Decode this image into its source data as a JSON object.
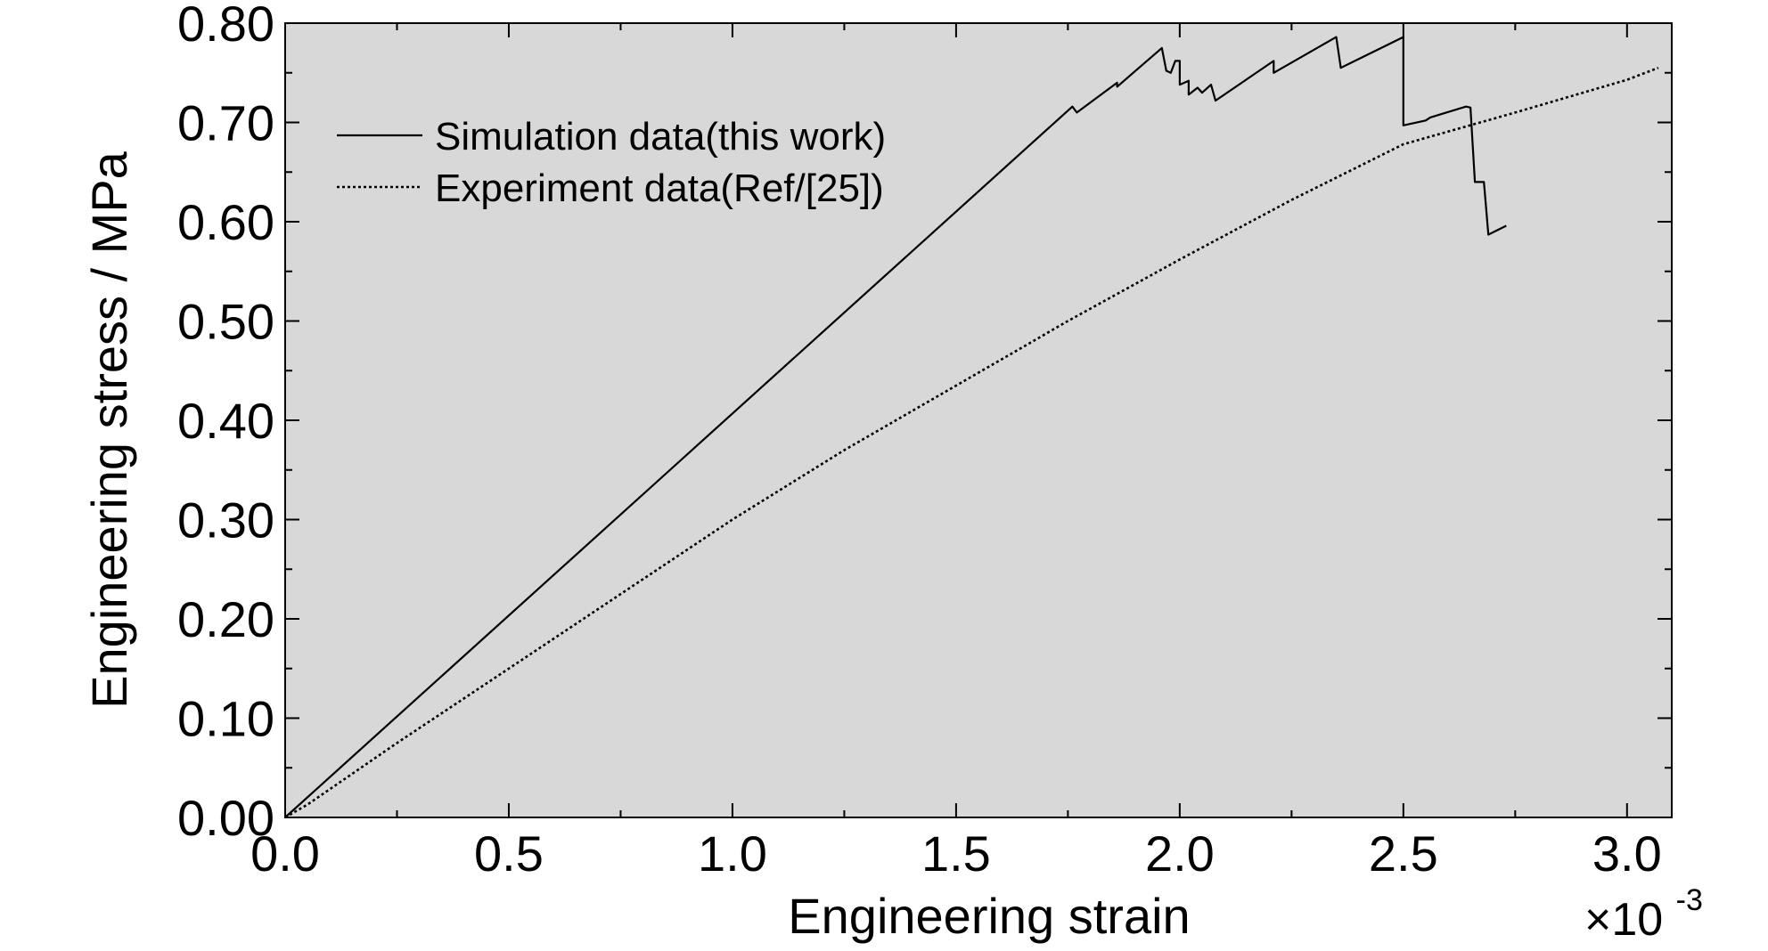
{
  "chart_data": {
    "type": "line",
    "xlabel": "Engineering strain",
    "ylabel": "Engineering stress / MPa",
    "x_multiplier": {
      "base": "×10",
      "exponent": "-3"
    },
    "xlim": [
      0.0,
      3.1
    ],
    "ylim": [
      0.0,
      0.8
    ],
    "xticks": [
      0.0,
      0.5,
      1.0,
      1.5,
      2.0,
      2.5,
      3.0
    ],
    "xtick_labels": [
      "0.0",
      "0.5",
      "1.0",
      "1.5",
      "2.0",
      "2.5",
      "3.0"
    ],
    "yticks": [
      0.0,
      0.1,
      0.2,
      0.3,
      0.4,
      0.5,
      0.6,
      0.7,
      0.8
    ],
    "ytick_labels": [
      "0.00",
      "0.10",
      "0.20",
      "0.30",
      "0.40",
      "0.50",
      "0.60",
      "0.70",
      "0.80"
    ],
    "grid": false,
    "background_color": "#d8d8d8",
    "legend_position": "top-left",
    "series": [
      {
        "name": "Simulation data(this work)",
        "style": "solid",
        "color": "#000000",
        "x": [
          0.0,
          1.76,
          1.77,
          1.86,
          1.86,
          1.96,
          1.97,
          1.98,
          1.99,
          2.0,
          2.0,
          2.02,
          2.02,
          2.04,
          2.05,
          2.07,
          2.08,
          2.21,
          2.21,
          2.35,
          2.36,
          2.5,
          2.5,
          2.55,
          2.56,
          2.64,
          2.65,
          2.66,
          2.68,
          2.69,
          2.73
        ],
        "y": [
          0.0,
          0.716,
          0.71,
          0.74,
          0.736,
          0.775,
          0.752,
          0.75,
          0.762,
          0.762,
          0.738,
          0.742,
          0.728,
          0.735,
          0.73,
          0.738,
          0.722,
          0.762,
          0.75,
          0.786,
          0.755,
          0.786,
          0.697,
          0.702,
          0.705,
          0.716,
          0.715,
          0.64,
          0.64,
          0.587,
          0.596
        ]
      },
      {
        "name": "Experiment data(Ref/[25])",
        "style": "dotted",
        "color": "#000000",
        "x": [
          0.0,
          0.05,
          0.25,
          0.5,
          0.75,
          1.0,
          1.25,
          1.5,
          1.75,
          2.0,
          2.25,
          2.5,
          2.75,
          3.0,
          3.07
        ],
        "y": [
          0.0,
          0.013,
          0.075,
          0.15,
          0.225,
          0.3,
          0.37,
          0.435,
          0.5,
          0.562,
          0.622,
          0.678,
          0.71,
          0.743,
          0.755
        ]
      }
    ]
  }
}
